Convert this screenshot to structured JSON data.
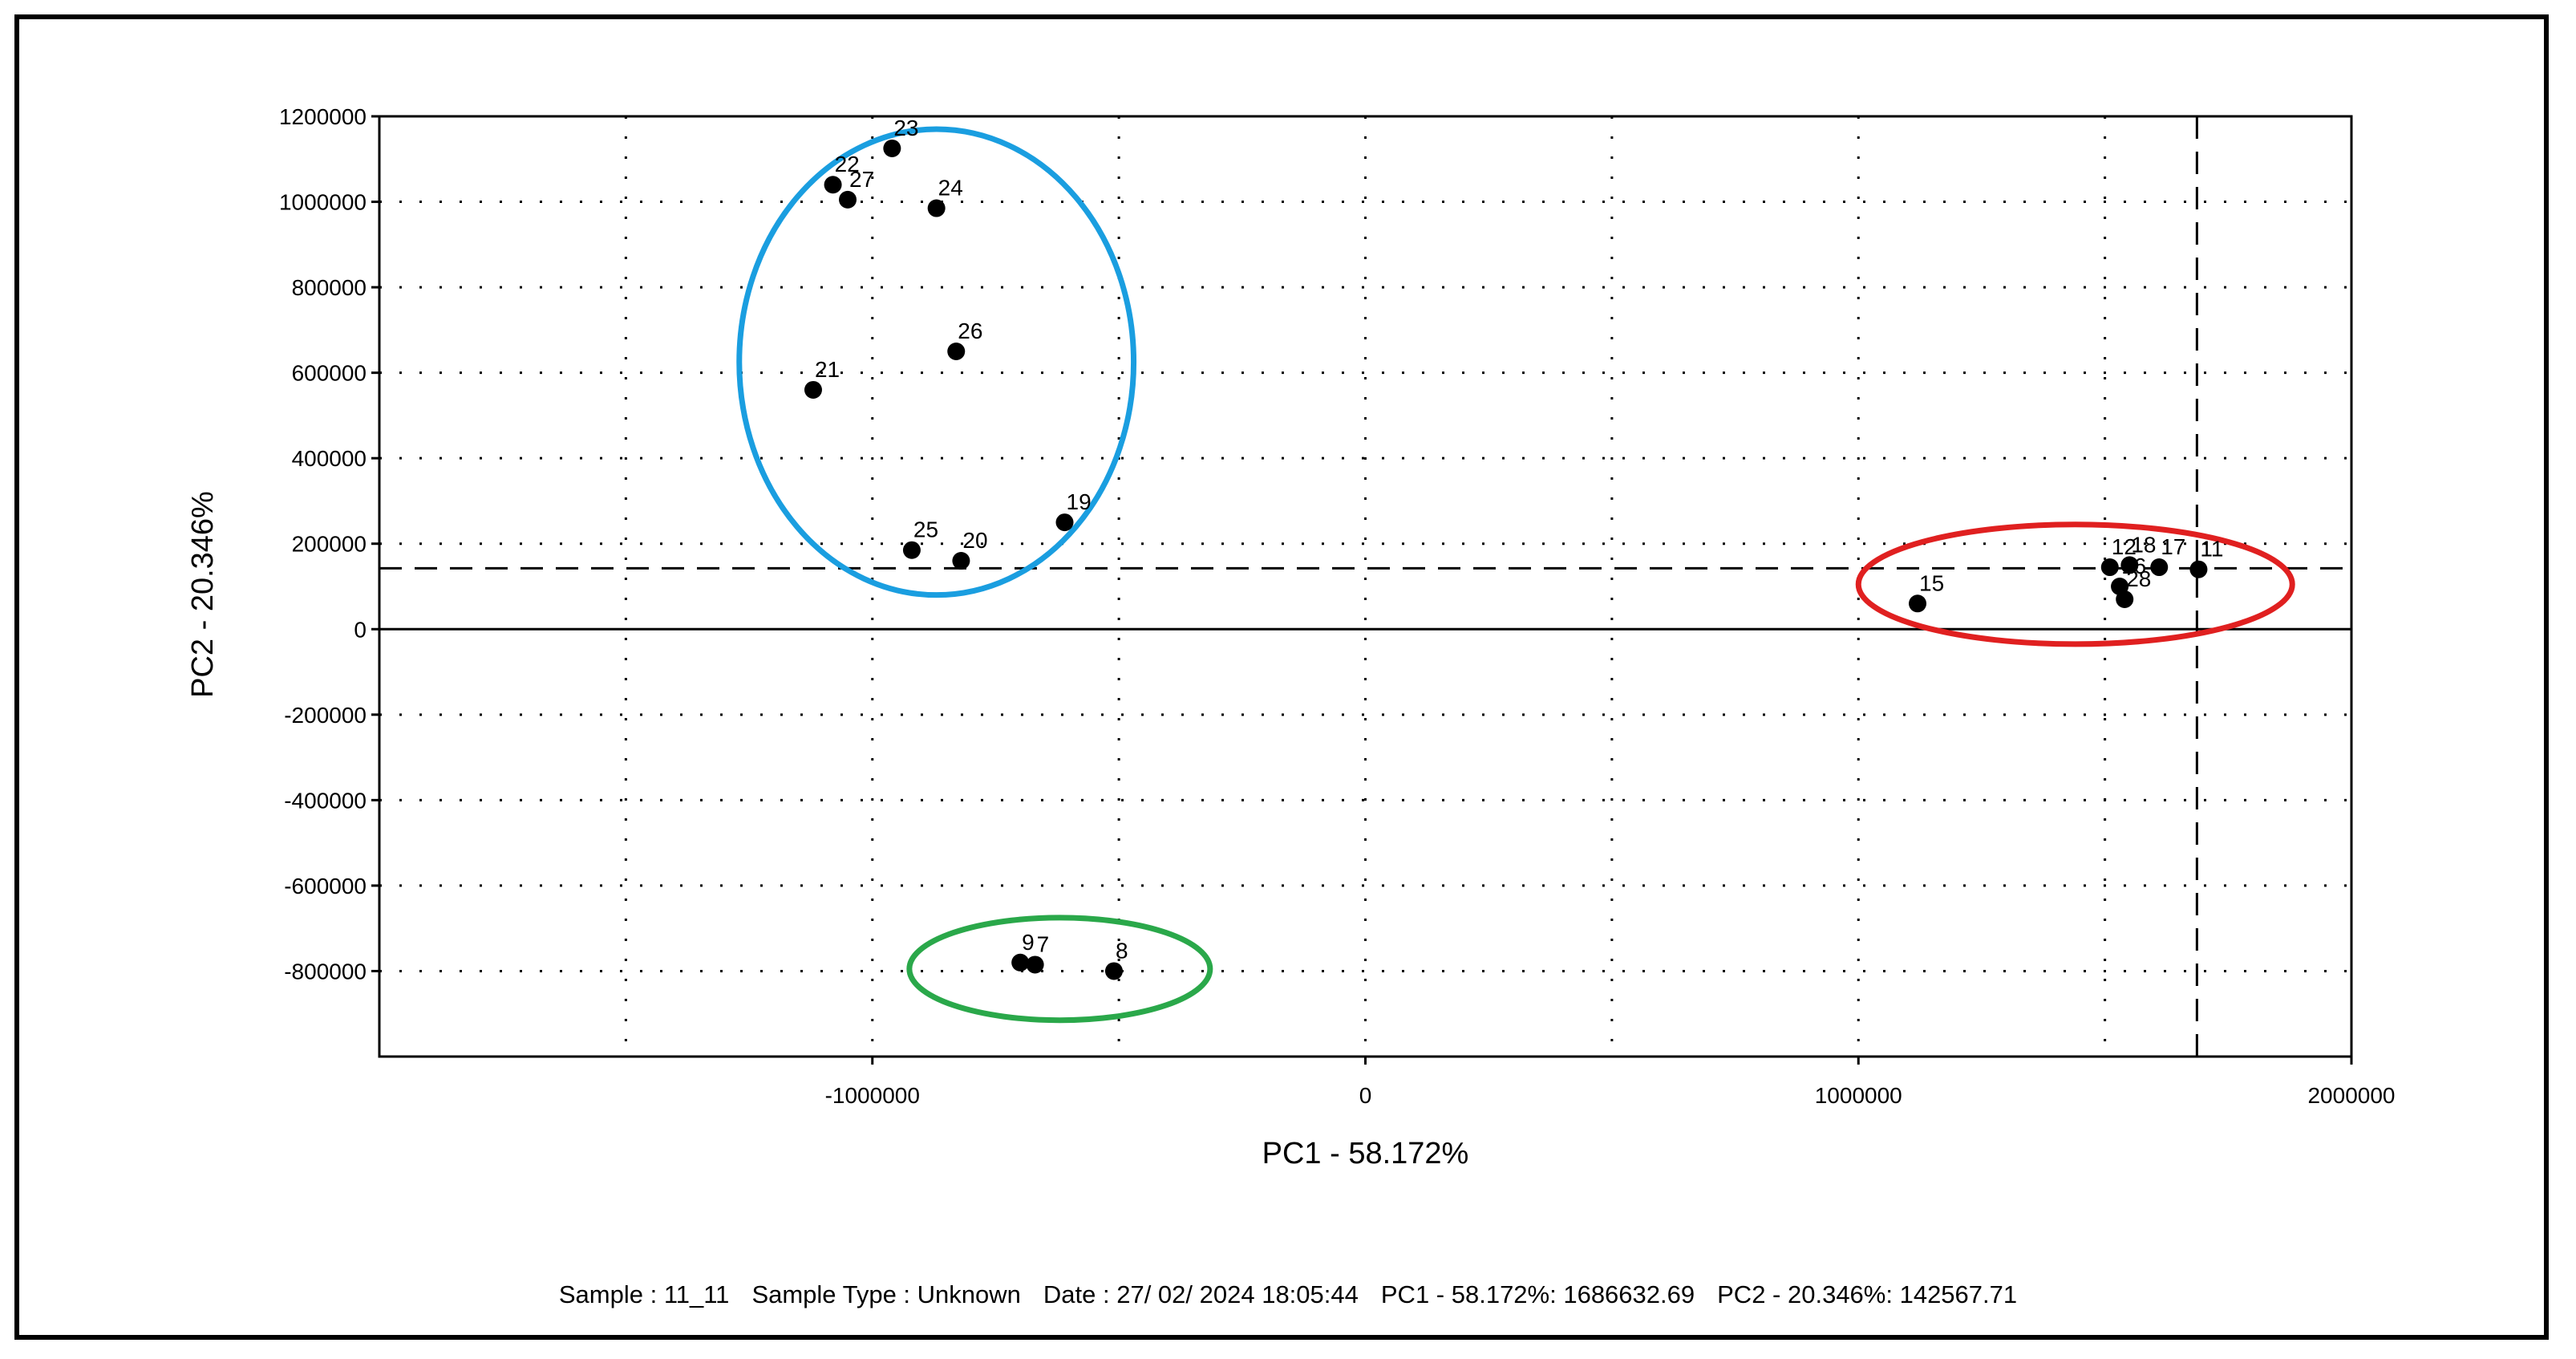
{
  "status": {
    "sample": "Sample : 11_11",
    "sample_type": "Sample Type : Unknown",
    "date": "Date : 27/ 02/ 2024 18:05:44",
    "pc1": "PC1 - 58.172%: 1686632.69",
    "pc2": "PC2 - 20.346%: 142567.71"
  },
  "chart_data": {
    "type": "scatter",
    "xlabel": "PC1 - 58.172%",
    "ylabel": "PC2 - 20.346%",
    "xlim": [
      -2000000,
      2000000
    ],
    "ylim": [
      -1000000,
      1200000
    ],
    "xticks": [
      -1000000,
      0,
      1000000,
      2000000
    ],
    "xtick_labels": [
      "-1000000",
      "0",
      "1000000",
      "2000000"
    ],
    "yticks": [
      -800000,
      -600000,
      -400000,
      -200000,
      0,
      200000,
      400000,
      600000,
      800000,
      1000000,
      1200000
    ],
    "ytick_labels": [
      "-800000",
      "-600000",
      "-400000",
      "-200000",
      "0",
      "200000",
      "400000",
      "600000",
      "800000",
      "1000000",
      "1200000"
    ],
    "grid": true,
    "crosshair": {
      "x": 1686632.69,
      "y": 142567.71
    },
    "points": [
      {
        "label": "23",
        "x": -960000,
        "y": 1125000
      },
      {
        "label": "22",
        "x": -1080000,
        "y": 1040000
      },
      {
        "label": "27",
        "x": -1050000,
        "y": 1005000
      },
      {
        "label": "24",
        "x": -870000,
        "y": 985000
      },
      {
        "label": "26",
        "x": -830000,
        "y": 650000
      },
      {
        "label": "21",
        "x": -1120000,
        "y": 560000
      },
      {
        "label": "19",
        "x": -610000,
        "y": 250000
      },
      {
        "label": "25",
        "x": -920000,
        "y": 185000
      },
      {
        "label": "20",
        "x": -820000,
        "y": 160000
      },
      {
        "label": "9",
        "x": -700000,
        "y": -780000
      },
      {
        "label": "7",
        "x": -670000,
        "y": -785000
      },
      {
        "label": "8",
        "x": -510000,
        "y": -800000
      },
      {
        "label": "15",
        "x": 1120000,
        "y": 60000
      },
      {
        "label": "12",
        "x": 1510000,
        "y": 145000
      },
      {
        "label": "18",
        "x": 1550000,
        "y": 150000
      },
      {
        "label": "17",
        "x": 1610000,
        "y": 145000
      },
      {
        "label": "11",
        "x": 1690000,
        "y": 140000
      },
      {
        "label": "16",
        "x": 1530000,
        "y": 100000
      },
      {
        "label": "28",
        "x": 1540000,
        "y": 70000
      }
    ],
    "groups": [
      {
        "color": "#1a9ee0",
        "cx": -870000,
        "cy": 625000,
        "rx": 400000,
        "ry": 545000
      },
      {
        "color": "#e02020",
        "cx": 1440000,
        "cy": 105000,
        "rx": 440000,
        "ry": 140000
      },
      {
        "color": "#2aa84a",
        "cx": -620000,
        "cy": -795000,
        "rx": 305000,
        "ry": 120000
      }
    ]
  }
}
